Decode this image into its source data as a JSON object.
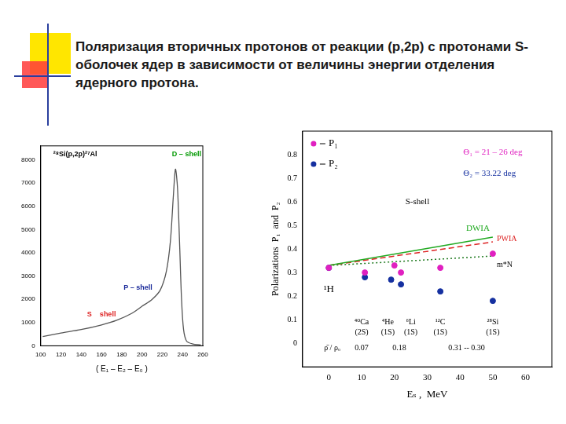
{
  "title": "Поляризация вторичных протонов от реакции (p,2p) с протонами S- оболочек  ядер в зависимости от величины энергии отделения ядерного протона.",
  "chart_data": [
    {
      "type": "line",
      "x_label": "( E₁ – E₂ – E₀ )",
      "x": [
        102,
        120,
        140,
        160,
        175,
        190,
        200,
        210,
        218,
        224,
        228,
        231,
        233,
        235,
        237,
        239,
        241,
        244,
        250,
        258
      ],
      "values": [
        400,
        550,
        700,
        900,
        1100,
        1400,
        1700,
        2000,
        2400,
        3200,
        4500,
        6500,
        7600,
        6800,
        4500,
        2000,
        700,
        200,
        80,
        40
      ],
      "color": "#555555",
      "xlim": [
        100,
        260
      ],
      "xticks": [
        100,
        120,
        140,
        160,
        180,
        200,
        220,
        240,
        260
      ],
      "ylim": [
        0,
        8600
      ],
      "yticks": [
        0,
        1000,
        2000,
        3000,
        4000,
        5000,
        6000,
        7000,
        8000
      ],
      "grid": false,
      "annotations": [
        {
          "text": "²⁸Si(p,2p)²⁷Al",
          "x": 134,
          "y": 8250,
          "color": "#000000"
        },
        {
          "text": "D – shell",
          "x": 244,
          "y": 8250,
          "color": "#009900"
        },
        {
          "text": "P – shell",
          "x": 196,
          "y": 2500,
          "color": "#1a2a9a"
        },
        {
          "text": "S    shell",
          "x": 160,
          "y": 1350,
          "color": "#dd2222"
        }
      ]
    },
    {
      "type": "scatter",
      "x_label": "Eₛ ,  MeV",
      "y_label": "Polarizations  P₁  and  P₂",
      "xlim": [
        -8,
        68
      ],
      "xticks": [
        0,
        10,
        20,
        30,
        40,
        50,
        60
      ],
      "ylim": [
        -0.1,
        0.9
      ],
      "yticks": [
        0,
        0.1,
        0.2,
        0.3,
        0.4,
        0.5,
        0.6,
        0.7,
        0.8
      ],
      "grid": false,
      "legend": "top-left",
      "series": [
        {
          "name": "P₁",
          "type": "scatter",
          "marker": "circle",
          "color": "#e020c0",
          "x": [
            0,
            11,
            20,
            22,
            34,
            50
          ],
          "values": [
            0.32,
            0.3,
            0.33,
            0.3,
            0.32,
            0.38
          ]
        },
        {
          "name": "P₂",
          "type": "scatter",
          "marker": "circle",
          "color": "#1530a0",
          "x": [
            0,
            11,
            19,
            22,
            34,
            50
          ],
          "values": [
            0.32,
            0.28,
            0.27,
            0.25,
            0.22,
            0.18
          ]
        },
        {
          "name": "DWIA",
          "type": "line",
          "line_style": "solid",
          "color": "#22aa22",
          "x": [
            0,
            50
          ],
          "values": [
            0.33,
            0.45
          ]
        },
        {
          "name": "PWIA",
          "type": "line",
          "line_style": "dashed",
          "color": "#dd2222",
          "x": [
            0,
            50
          ],
          "values": [
            0.33,
            0.43
          ]
        },
        {
          "name": "m*N",
          "type": "line",
          "line_style": "dotted",
          "color": "#1f7a1f",
          "x": [
            0,
            50
          ],
          "values": [
            0.33,
            0.37
          ]
        }
      ],
      "annotations": [
        {
          "text": "Θ₁ = 21 – 26 deg",
          "x": 50,
          "y": 0.81,
          "color": "#e020c0"
        },
        {
          "text": "Θ₂ = 33.22 deg",
          "x": 49,
          "y": 0.72,
          "color": "#1530a0"
        },
        {
          "text": "S-shell",
          "x": 27,
          "y": 0.6,
          "color": "#000000"
        }
      ],
      "nuclei": [
        {
          "nucleus": "¹H",
          "x": 0,
          "y": 0.23
        },
        {
          "nucleus": "⁴⁰Ca",
          "shell": "(2S)",
          "x": 10,
          "y": 0.09
        },
        {
          "nucleus": "⁴He",
          "shell": "(1S)",
          "x": 18,
          "y": 0.09
        },
        {
          "nucleus": "⁶Li",
          "shell": "(1S)",
          "x": 25,
          "y": 0.09
        },
        {
          "nucleus": "¹²C",
          "shell": "(1S)",
          "x": 34,
          "y": 0.09
        },
        {
          "nucleus": "²⁸Si",
          "shell": "(1S)",
          "x": 50,
          "y": 0.09
        }
      ],
      "ratio_row": {
        "y": 0.0,
        "items": [
          {
            "text": "ρ̄ / ρₒ",
            "x": 1
          },
          {
            "text": "0.07",
            "x": 10
          },
          {
            "text": "0.18",
            "x": 21.5
          },
          {
            "text": "0.31 -- 0.30",
            "x": 42
          }
        ]
      }
    }
  ]
}
